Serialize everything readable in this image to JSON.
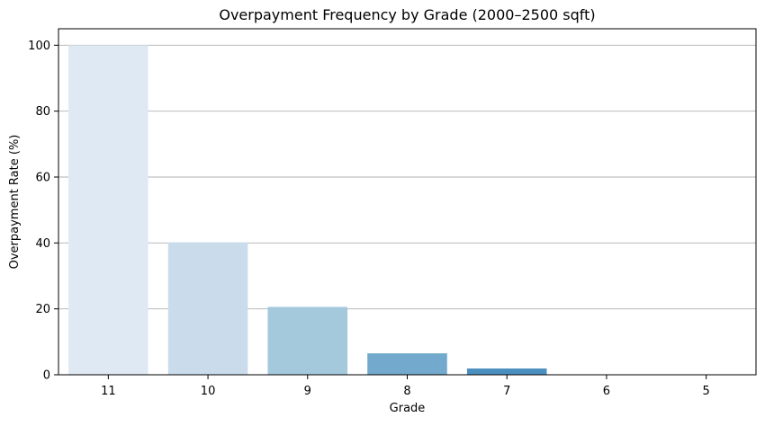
{
  "chart_data": {
    "type": "bar",
    "title": "Overpayment Frequency by Grade (2000–2500 sqft)",
    "xlabel": "Grade",
    "ylabel": "Overpayment Rate (%)",
    "categories": [
      "11",
      "10",
      "9",
      "8",
      "7",
      "6",
      "5"
    ],
    "values": [
      100,
      40.2,
      20.6,
      6.5,
      1.9,
      0,
      0
    ],
    "ylim": [
      0,
      105
    ],
    "yticks": [
      0,
      20,
      40,
      60,
      80,
      100
    ],
    "grid": "y",
    "colors": [
      "#dfe9f4",
      "#cadceb",
      "#a4c9dd",
      "#72a9cc",
      "#4b8fc0",
      "#2f6fa8",
      "#1d4f8a"
    ]
  }
}
